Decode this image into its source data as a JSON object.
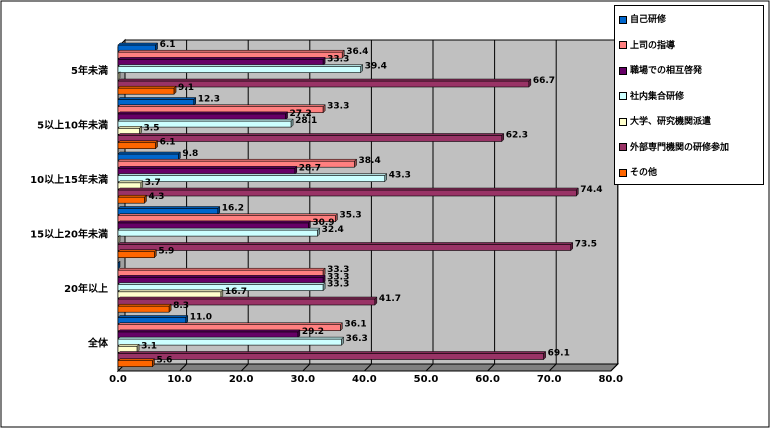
{
  "chart_data": {
    "type": "bar",
    "orientation": "horizontal",
    "style": "3d",
    "categories": [
      "5年未満",
      "5以上10年未満",
      "10以上15年未満",
      "15以上20年未満",
      "20年以上",
      "全体"
    ],
    "series": [
      {
        "name": "自己研修",
        "color": "#0066cc",
        "values": [
          6.1,
          12.3,
          9.8,
          16.2,
          0.0,
          11.0
        ]
      },
      {
        "name": "上司の指導",
        "color": "#ff8080",
        "values": [
          36.4,
          33.3,
          38.4,
          35.3,
          33.3,
          36.1
        ]
      },
      {
        "name": "職場での相互啓発",
        "color": "#660066",
        "values": [
          33.3,
          27.2,
          28.7,
          30.9,
          33.3,
          29.2
        ]
      },
      {
        "name": "社内集合研修",
        "color": "#ccffff",
        "values": [
          39.4,
          28.1,
          43.3,
          32.4,
          33.3,
          36.3
        ]
      },
      {
        "name": "大学、研究機関派遣",
        "color": "#ffffcc",
        "values": [
          0.0,
          3.5,
          3.7,
          0.0,
          16.7,
          3.1
        ]
      },
      {
        "name": "外部専門機関の研修参加",
        "color": "#993366",
        "values": [
          66.7,
          62.3,
          74.4,
          73.5,
          41.7,
          69.1
        ]
      },
      {
        "name": "その他",
        "color": "#ff6600",
        "values": [
          9.1,
          6.1,
          4.3,
          5.9,
          8.3,
          5.6
        ]
      }
    ],
    "labels": [
      [
        "6.1",
        "36.4",
        "33.3",
        "39.4",
        "",
        "66.7",
        "9.1"
      ],
      [
        "12.3",
        "33.3",
        "27.2",
        "28.1",
        "3.5",
        "62.3",
        "6.1"
      ],
      [
        "9.8",
        "38.4",
        "28.7",
        "43.3",
        "3.7",
        "74.4",
        "4.3"
      ],
      [
        "16.2",
        "35.3",
        "30.9",
        "32.4",
        "",
        "73.5",
        "5.9"
      ],
      [
        "",
        "33.3",
        "33.3",
        "33.3",
        "16.7",
        "41.7",
        "8.3"
      ],
      [
        "11.0",
        "36.1",
        "29.2",
        "36.3",
        "3.1",
        "69.1",
        "5.6"
      ]
    ],
    "xlim": [
      0,
      80
    ],
    "xticks": [
      "0.0",
      "10.0",
      "20.0",
      "30.0",
      "40.0",
      "50.0",
      "60.0",
      "70.0",
      "80.0"
    ],
    "grid": true,
    "legend_position": "right",
    "plot_background": "#c0c0c0"
  }
}
